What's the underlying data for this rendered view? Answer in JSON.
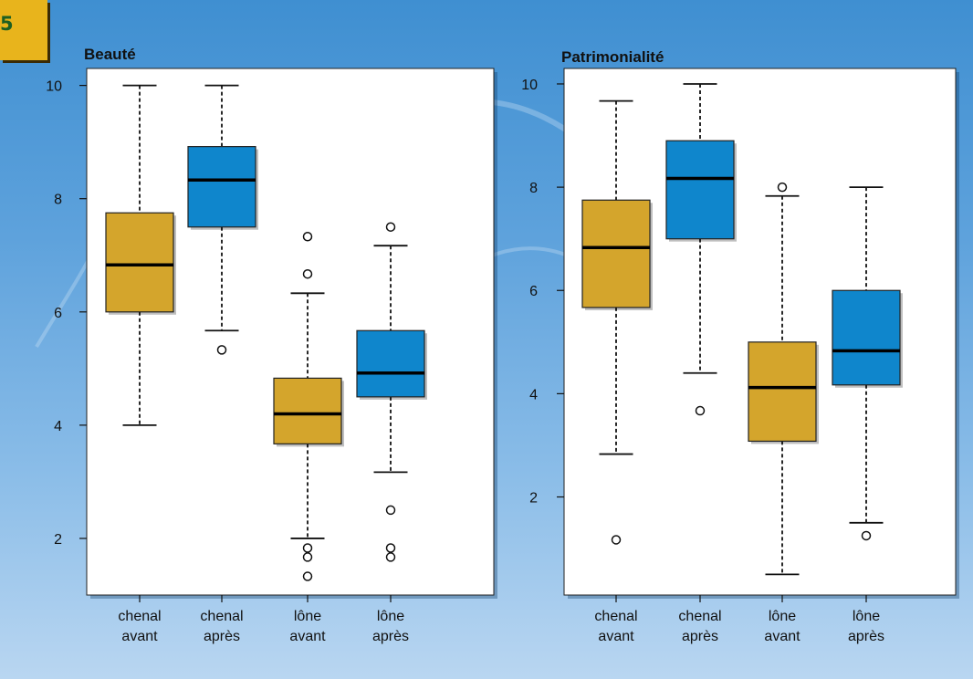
{
  "badge": {
    "label": "5"
  },
  "colors": {
    "avant": "#d4a52c",
    "apres": "#0f86cc",
    "outline": "#1a1a1a"
  },
  "chart_data": [
    {
      "type": "boxplot",
      "title": "Beauté",
      "categories": [
        "chenal avant",
        "chenal après",
        "lône avant",
        "lône après"
      ],
      "category_lines": [
        [
          "chenal",
          "avant"
        ],
        [
          "chenal",
          "après"
        ],
        [
          "lône",
          "avant"
        ],
        [
          "lône",
          "après"
        ]
      ],
      "fill": [
        "avant",
        "apres",
        "avant",
        "apres"
      ],
      "boxes": [
        {
          "whisker_low": 4.0,
          "q1": 6.0,
          "median": 6.83,
          "q3": 7.75,
          "whisker_high": 10.0,
          "outliers": []
        },
        {
          "whisker_low": 5.67,
          "q1": 7.5,
          "median": 8.33,
          "q3": 8.92,
          "whisker_high": 10.0,
          "outliers": [
            5.33
          ]
        },
        {
          "whisker_low": 2.0,
          "q1": 3.67,
          "median": 4.2,
          "q3": 4.83,
          "whisker_high": 6.33,
          "outliers": [
            7.33,
            6.67,
            1.83,
            1.67,
            1.33
          ]
        },
        {
          "whisker_low": 3.17,
          "q1": 4.5,
          "median": 4.92,
          "q3": 5.67,
          "whisker_high": 7.17,
          "outliers": [
            7.5,
            2.5,
            1.83,
            1.67
          ]
        }
      ],
      "yticks": [
        2,
        4,
        6,
        8,
        10
      ],
      "ylim": [
        1.0,
        10.3
      ]
    },
    {
      "type": "boxplot",
      "title": "Patrimonialité",
      "categories": [
        "chenal avant",
        "chenal après",
        "lône avant",
        "lône après"
      ],
      "category_lines": [
        [
          "chenal",
          "avant"
        ],
        [
          "chenal",
          "après"
        ],
        [
          "lône",
          "avant"
        ],
        [
          "lône",
          "après"
        ]
      ],
      "fill": [
        "avant",
        "apres",
        "avant",
        "apres"
      ],
      "boxes": [
        {
          "whisker_low": 2.83,
          "q1": 5.67,
          "median": 6.83,
          "q3": 7.75,
          "whisker_high": 9.67,
          "outliers": [
            1.17
          ]
        },
        {
          "whisker_low": 4.4,
          "q1": 7.0,
          "median": 8.17,
          "q3": 8.9,
          "whisker_high": 10.0,
          "outliers": [
            3.67
          ]
        },
        {
          "whisker_low": 0.5,
          "q1": 3.08,
          "median": 4.12,
          "q3": 5.0,
          "whisker_high": 7.83,
          "outliers": [
            8.0
          ]
        },
        {
          "whisker_low": 1.5,
          "q1": 4.17,
          "median": 4.83,
          "q3": 6.0,
          "whisker_high": 8.0,
          "outliers": [
            1.25
          ]
        }
      ],
      "yticks": [
        2,
        4,
        6,
        8,
        10
      ],
      "ylim": [
        0.1,
        10.3
      ]
    }
  ]
}
